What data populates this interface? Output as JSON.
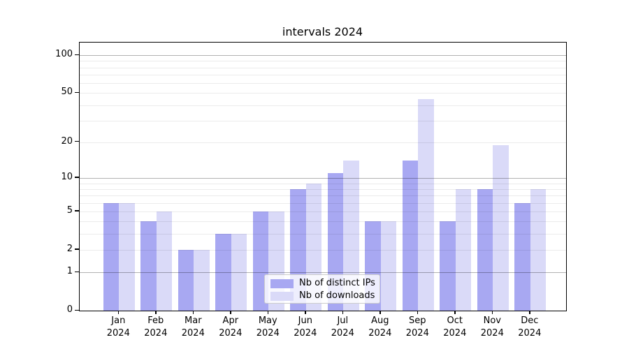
{
  "chart_data": {
    "type": "bar",
    "title": "intervals 2024",
    "categories": [
      {
        "month": "Jan",
        "year": "2024"
      },
      {
        "month": "Feb",
        "year": "2024"
      },
      {
        "month": "Mar",
        "year": "2024"
      },
      {
        "month": "Apr",
        "year": "2024"
      },
      {
        "month": "May",
        "year": "2024"
      },
      {
        "month": "Jun",
        "year": "2024"
      },
      {
        "month": "Jul",
        "year": "2024"
      },
      {
        "month": "Aug",
        "year": "2024"
      },
      {
        "month": "Sep",
        "year": "2024"
      },
      {
        "month": "Oct",
        "year": "2024"
      },
      {
        "month": "Nov",
        "year": "2024"
      },
      {
        "month": "Dec",
        "year": "2024"
      }
    ],
    "series": [
      {
        "name": "Nb of distinct IPs",
        "color": "#a8a8f2",
        "values": [
          6,
          4,
          2,
          3,
          5,
          8,
          11,
          4,
          14,
          4,
          8,
          6
        ]
      },
      {
        "name": "Nb of downloads",
        "color": "#dadaf8",
        "values": [
          6,
          5,
          2,
          3,
          5,
          9,
          14,
          4,
          45,
          8,
          19,
          8
        ]
      }
    ],
    "yscale": "log1p",
    "ylim": [
      0,
      126
    ],
    "yticks": [
      0,
      1,
      2,
      5,
      10,
      20,
      50,
      100
    ],
    "major_gridlines": [
      1,
      10,
      100
    ],
    "minor_gridlines": [
      2,
      3,
      4,
      5,
      6,
      7,
      8,
      9,
      20,
      30,
      40,
      50,
      60,
      70,
      80,
      90
    ],
    "legend_position": "lower center",
    "grid": "on",
    "colors": {
      "background": "#ffffff",
      "spine": "#000000",
      "major_grid": "rgba(0,0,0,0.30)",
      "minor_grid": "rgba(0,0,0,0.08)",
      "legend_border": "#cccccc"
    }
  }
}
